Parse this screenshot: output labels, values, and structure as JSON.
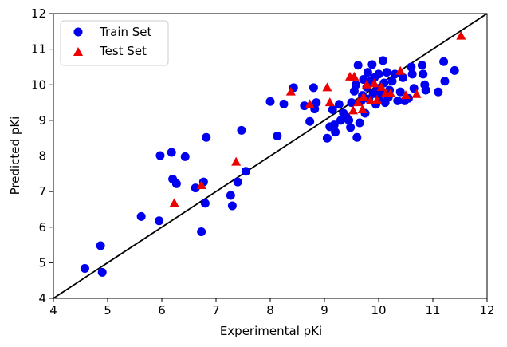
{
  "chart_data": {
    "type": "scatter",
    "xlabel": "Experimental pKi",
    "ylabel": "Predicted pKi",
    "xlim": [
      4,
      12
    ],
    "ylim": [
      4,
      12
    ],
    "xticks": [
      4,
      5,
      6,
      7,
      8,
      9,
      10,
      11,
      12
    ],
    "yticks": [
      4,
      5,
      6,
      7,
      8,
      9,
      10,
      11,
      12
    ],
    "grid": false,
    "legend_position": "top-left",
    "identity_line": true,
    "colors": {
      "train": "#0000ee",
      "test": "#ee0000",
      "line": "#000000"
    },
    "series": [
      {
        "name": "Train Set",
        "marker": "circle",
        "points": [
          [
            4.58,
            4.84
          ],
          [
            4.87,
            5.48
          ],
          [
            4.9,
            4.73
          ],
          [
            5.62,
            6.3
          ],
          [
            5.95,
            6.18
          ],
          [
            5.97,
            8.01
          ],
          [
            6.18,
            8.1
          ],
          [
            6.2,
            7.35
          ],
          [
            6.27,
            7.22
          ],
          [
            6.43,
            7.98
          ],
          [
            6.62,
            7.1
          ],
          [
            6.73,
            5.87
          ],
          [
            6.77,
            7.27
          ],
          [
            6.8,
            6.67
          ],
          [
            6.82,
            8.52
          ],
          [
            7.27,
            6.89
          ],
          [
            7.3,
            6.6
          ],
          [
            7.4,
            7.27
          ],
          [
            7.47,
            8.72
          ],
          [
            7.55,
            7.57
          ],
          [
            8.0,
            9.53
          ],
          [
            8.13,
            8.56
          ],
          [
            8.25,
            9.46
          ],
          [
            8.43,
            9.92
          ],
          [
            8.63,
            9.41
          ],
          [
            8.73,
            8.97
          ],
          [
            8.8,
            9.92
          ],
          [
            8.82,
            9.32
          ],
          [
            8.85,
            9.5
          ],
          [
            9.05,
            8.5
          ],
          [
            9.1,
            8.82
          ],
          [
            9.15,
            9.3
          ],
          [
            9.18,
            8.87
          ],
          [
            9.2,
            8.67
          ],
          [
            9.27,
            9.45
          ],
          [
            9.3,
            9.0
          ],
          [
            9.35,
            9.2
          ],
          [
            9.4,
            9.1
          ],
          [
            9.45,
            9.0
          ],
          [
            9.48,
            8.8
          ],
          [
            9.5,
            9.5
          ],
          [
            9.55,
            9.82
          ],
          [
            9.58,
            10.0
          ],
          [
            9.6,
            8.52
          ],
          [
            9.62,
            10.55
          ],
          [
            9.65,
            8.93
          ],
          [
            9.68,
            9.55
          ],
          [
            9.7,
            9.7
          ],
          [
            9.72,
            10.15
          ],
          [
            9.75,
            9.2
          ],
          [
            9.78,
            9.93
          ],
          [
            9.8,
            10.35
          ],
          [
            9.82,
            9.6
          ],
          [
            9.85,
            10.1
          ],
          [
            9.88,
            10.57
          ],
          [
            9.9,
            9.75
          ],
          [
            9.92,
            10.2
          ],
          [
            9.95,
            9.45
          ],
          [
            9.98,
            9.9
          ],
          [
            10.0,
            10.3
          ],
          [
            10.02,
            9.6
          ],
          [
            10.05,
            9.75
          ],
          [
            10.08,
            10.68
          ],
          [
            10.1,
            10.05
          ],
          [
            10.12,
            9.5
          ],
          [
            10.15,
            10.35
          ],
          [
            10.18,
            9.65
          ],
          [
            10.2,
            9.85
          ],
          [
            10.25,
            10.1
          ],
          [
            10.3,
            10.3
          ],
          [
            10.35,
            9.55
          ],
          [
            10.4,
            9.8
          ],
          [
            10.45,
            10.2
          ],
          [
            10.48,
            9.55
          ],
          [
            10.55,
            9.62
          ],
          [
            10.6,
            10.5
          ],
          [
            10.62,
            10.3
          ],
          [
            10.65,
            9.9
          ],
          [
            10.8,
            10.55
          ],
          [
            10.82,
            10.3
          ],
          [
            10.85,
            10.0
          ],
          [
            10.87,
            9.85
          ],
          [
            11.1,
            9.8
          ],
          [
            11.2,
            10.65
          ],
          [
            11.22,
            10.1
          ],
          [
            11.4,
            10.4
          ]
        ]
      },
      {
        "name": "Test Set",
        "marker": "triangle",
        "points": [
          [
            6.23,
            6.67
          ],
          [
            6.73,
            7.17
          ],
          [
            7.37,
            7.83
          ],
          [
            8.38,
            9.8
          ],
          [
            8.73,
            9.45
          ],
          [
            9.05,
            9.92
          ],
          [
            9.1,
            9.5
          ],
          [
            9.47,
            10.22
          ],
          [
            9.53,
            9.27
          ],
          [
            9.55,
            10.22
          ],
          [
            9.62,
            9.5
          ],
          [
            9.7,
            9.3
          ],
          [
            9.72,
            9.65
          ],
          [
            9.78,
            10.0
          ],
          [
            9.85,
            9.55
          ],
          [
            9.92,
            10.03
          ],
          [
            9.97,
            9.57
          ],
          [
            10.05,
            9.93
          ],
          [
            10.13,
            9.75
          ],
          [
            10.22,
            9.75
          ],
          [
            10.4,
            10.38
          ],
          [
            10.5,
            9.7
          ],
          [
            10.7,
            9.73
          ],
          [
            11.52,
            11.37
          ]
        ]
      }
    ]
  }
}
